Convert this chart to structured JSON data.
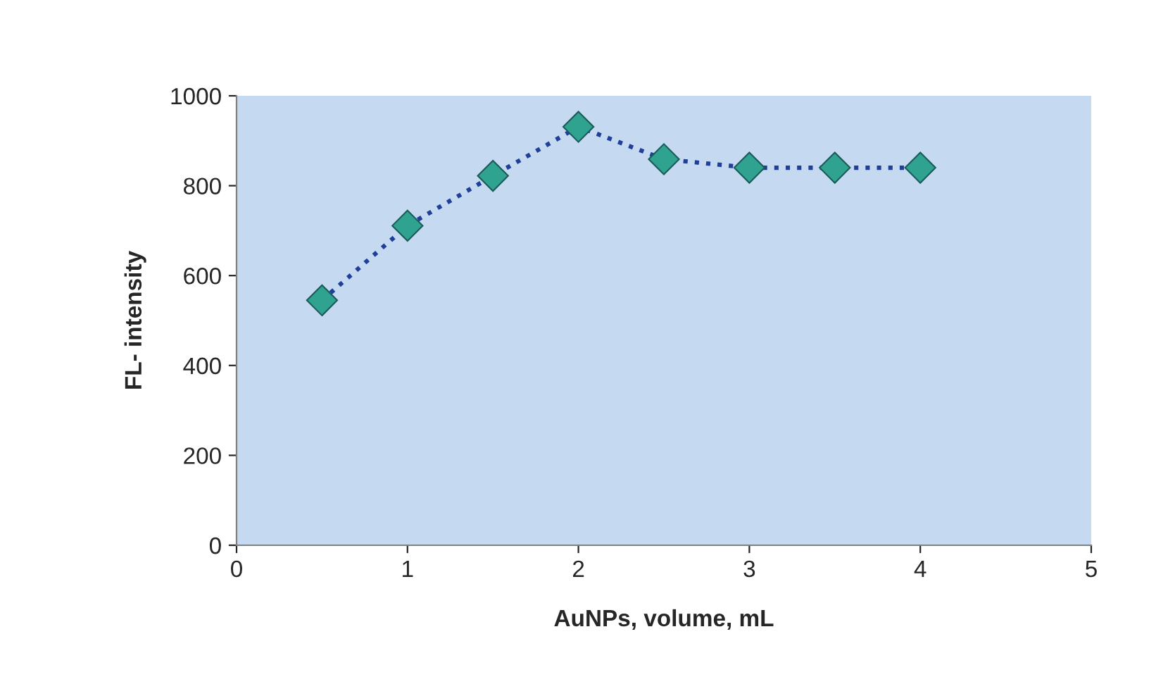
{
  "chart_data": {
    "type": "line",
    "xlabel": "AuNPs, volume, mL",
    "ylabel": "FL- intensity",
    "x": [
      0.5,
      1,
      1.5,
      2,
      2.5,
      3,
      3.5,
      4
    ],
    "series": [
      {
        "color": "#1f3f99",
        "values": [
          545,
          711,
          822,
          931,
          859,
          840,
          840,
          840
        ]
      }
    ],
    "xlim": [
      0,
      5
    ],
    "xticks": [
      0,
      1,
      2,
      3,
      4,
      5
    ],
    "ylim": [
      0,
      1000
    ],
    "yticks": [
      0,
      200,
      400,
      600,
      800,
      1000
    ],
    "marker": "diamond",
    "line_style": "dotted",
    "grid": false,
    "legend": false
  }
}
